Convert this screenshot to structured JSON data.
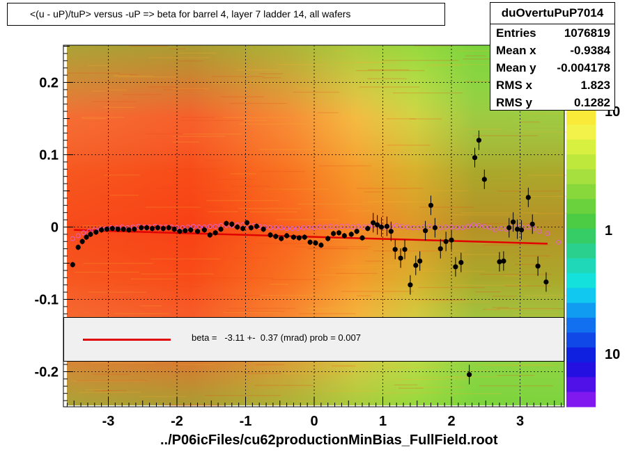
{
  "chart_data": {
    "type": "scatter",
    "title": "<(u - uP)/tuP> versus  -uP => beta for barrel 4, layer 7 ladder 14, all wafers",
    "xlabel": "../P06icFiles/cu62productionMinBias_FullField.root",
    "ylabel": "",
    "xlim": [
      -3.65,
      3.65
    ],
    "ylim": [
      -0.25,
      0.25
    ],
    "x_ticks": [
      "-3",
      "-2",
      "-1",
      "0",
      "1",
      "2",
      "3"
    ],
    "y_ticks": [
      "0.2",
      "0.1",
      "0",
      "-0.1",
      "-0.2"
    ],
    "grid": true,
    "colorbar": {
      "ticks": [
        "10",
        "1",
        "10"
      ]
    },
    "stats": {
      "name": "duOvertuPuP7014",
      "rows": [
        {
          "label": "Entries",
          "value": "1076819"
        },
        {
          "label": "Mean x",
          "value": "-0.9384"
        },
        {
          "label": "Mean y",
          "value": "-0.004178"
        },
        {
          "label": "RMS x",
          "value": "1.823"
        },
        {
          "label": "RMS y",
          "value": "0.1282"
        }
      ]
    },
    "legend": {
      "text": "beta =   -3.11 +-  0.37 (mrad) prob = 0.007",
      "line_color": "#e00000"
    },
    "fit_line": {
      "x": [
        -3.5,
        3.4
      ],
      "y": [
        -0.004,
        -0.023
      ],
      "color": "#e00000"
    },
    "series": [
      {
        "marker": "filled-circle",
        "color": "#000000",
        "points": [
          [
            -3.52,
            -0.052
          ],
          [
            -3.44,
            -0.028
          ],
          [
            -3.38,
            -0.02
          ],
          [
            -3.32,
            -0.014
          ],
          [
            -3.26,
            -0.01
          ],
          [
            -3.18,
            -0.007
          ],
          [
            -3.1,
            -0.004
          ],
          [
            -3.02,
            -0.003
          ],
          [
            -2.94,
            -0.002
          ],
          [
            -2.86,
            -0.003
          ],
          [
            -2.78,
            -0.003
          ],
          [
            -2.7,
            -0.004
          ],
          [
            -2.62,
            -0.003
          ],
          [
            -2.52,
            -0.001
          ],
          [
            -2.44,
            -0.001
          ],
          [
            -2.36,
            -0.002
          ],
          [
            -2.28,
            -0.001
          ],
          [
            -2.2,
            -0.002
          ],
          [
            -2.12,
            -0.001
          ],
          [
            -2.04,
            -0.003
          ],
          [
            -1.96,
            -0.006
          ],
          [
            -1.88,
            -0.005
          ],
          [
            -1.8,
            -0.004
          ],
          [
            -1.7,
            -0.006
          ],
          [
            -1.6,
            -0.004
          ],
          [
            -1.52,
            -0.011
          ],
          [
            -1.44,
            -0.008
          ],
          [
            -1.36,
            -0.003
          ],
          [
            -1.28,
            0.005
          ],
          [
            -1.2,
            0.004
          ],
          [
            -1.12,
            0.0
          ],
          [
            -1.04,
            -0.002
          ],
          [
            -0.98,
            0.006
          ],
          [
            -0.92,
            -0.001
          ],
          [
            -0.84,
            0.001
          ],
          [
            -0.74,
            -0.003
          ],
          [
            -0.64,
            -0.011
          ],
          [
            -0.56,
            -0.013
          ],
          [
            -0.48,
            -0.016
          ],
          [
            -0.4,
            -0.012
          ],
          [
            -0.3,
            -0.014
          ],
          [
            -0.22,
            -0.015
          ],
          [
            -0.14,
            -0.014
          ],
          [
            -0.06,
            -0.021
          ],
          [
            0.02,
            -0.022
          ],
          [
            0.1,
            -0.025
          ],
          [
            0.2,
            -0.016
          ],
          [
            0.28,
            -0.009
          ],
          [
            0.36,
            -0.008
          ],
          [
            0.44,
            -0.012
          ],
          [
            0.54,
            -0.01
          ],
          [
            0.62,
            -0.006
          ],
          [
            0.7,
            -0.015
          ],
          [
            0.78,
            -0.002
          ],
          [
            0.86,
            0.006
          ],
          [
            0.92,
            0.003
          ],
          [
            0.98,
            0.0
          ],
          [
            1.06,
            0.001
          ],
          [
            1.12,
            -0.006
          ],
          [
            1.18,
            -0.031
          ],
          [
            1.26,
            -0.043
          ],
          [
            1.32,
            -0.031
          ],
          [
            1.4,
            -0.08
          ],
          [
            1.48,
            -0.053
          ],
          [
            1.54,
            -0.047
          ],
          [
            1.62,
            -0.005
          ],
          [
            1.7,
            0.03
          ],
          [
            1.76,
            -0.001
          ],
          [
            1.84,
            -0.03
          ],
          [
            1.92,
            -0.02
          ],
          [
            2.0,
            -0.018
          ],
          [
            2.06,
            -0.055
          ],
          [
            2.14,
            -0.049
          ],
          [
            2.26,
            -0.204
          ],
          [
            2.34,
            0.096
          ],
          [
            2.4,
            0.12
          ],
          [
            2.48,
            0.066
          ],
          [
            2.7,
            -0.048
          ],
          [
            2.76,
            -0.047
          ],
          [
            2.84,
            -0.001
          ],
          [
            2.9,
            0.007
          ],
          [
            2.96,
            -0.003
          ],
          [
            3.02,
            -0.004
          ],
          [
            3.12,
            0.041
          ],
          [
            3.18,
            0.004
          ],
          [
            3.26,
            -0.054
          ],
          [
            3.38,
            -0.076
          ]
        ]
      },
      {
        "marker": "open-circle",
        "color": "#e060d0",
        "points": [
          [
            -3.52,
            -0.016
          ],
          [
            -3.44,
            -0.012
          ],
          [
            -3.36,
            -0.008
          ],
          [
            -3.28,
            -0.006
          ],
          [
            -3.2,
            -0.004
          ],
          [
            -3.12,
            -0.003
          ],
          [
            -3.04,
            -0.002
          ],
          [
            -2.96,
            -0.001
          ],
          [
            -2.88,
            -0.001
          ],
          [
            -2.8,
            0.0
          ],
          [
            -2.72,
            -0.001
          ],
          [
            -2.64,
            0.0
          ],
          [
            -2.56,
            0.001
          ],
          [
            -2.48,
            0.0
          ],
          [
            -2.4,
            0.0
          ],
          [
            -2.32,
            0.001
          ],
          [
            -2.24,
            0.0
          ],
          [
            -2.16,
            0.0
          ],
          [
            -2.08,
            0.0
          ],
          [
            -2.0,
            -0.001
          ],
          [
            -1.92,
            -0.001
          ],
          [
            -1.84,
            0.0
          ],
          [
            -1.76,
            0.001
          ],
          [
            -1.68,
            0.0
          ],
          [
            -1.6,
            0.0
          ],
          [
            -1.52,
            0.001
          ],
          [
            -1.44,
            0.001
          ],
          [
            -1.36,
            0.002
          ],
          [
            -1.28,
            0.002
          ],
          [
            -1.2,
            0.002
          ],
          [
            -1.12,
            0.003
          ],
          [
            -1.04,
            0.003
          ],
          [
            -0.96,
            0.002
          ],
          [
            -0.88,
            0.002
          ],
          [
            -0.8,
            0.001
          ],
          [
            -0.72,
            0.0
          ],
          [
            -0.64,
            -0.001
          ],
          [
            -0.56,
            -0.001
          ],
          [
            -0.48,
            -0.001
          ],
          [
            -0.4,
            -0.002
          ],
          [
            -0.32,
            -0.002
          ],
          [
            -0.24,
            -0.002
          ],
          [
            -0.16,
            -0.001
          ],
          [
            -0.08,
            -0.001
          ],
          [
            0.0,
            -0.001
          ],
          [
            0.08,
            0.0
          ],
          [
            0.16,
            0.0
          ],
          [
            0.24,
            0.001
          ],
          [
            0.32,
            0.0
          ],
          [
            0.4,
            0.001
          ],
          [
            0.48,
            0.001
          ],
          [
            0.56,
            0.0
          ],
          [
            0.64,
            0.001
          ],
          [
            0.72,
            0.0
          ],
          [
            0.8,
            0.001
          ],
          [
            0.88,
            0.002
          ],
          [
            0.96,
            0.001
          ],
          [
            1.04,
            0.0
          ],
          [
            1.12,
            0.001
          ],
          [
            1.2,
            0.002
          ],
          [
            1.28,
            0.001
          ],
          [
            1.36,
            0.0
          ],
          [
            1.44,
            -0.001
          ],
          [
            1.52,
            -0.001
          ],
          [
            1.6,
            0.0
          ],
          [
            1.68,
            0.001
          ],
          [
            1.76,
            0.0
          ],
          [
            1.84,
            -0.001
          ],
          [
            1.92,
            0.0
          ],
          [
            2.0,
            0.0
          ],
          [
            2.08,
            -0.001
          ],
          [
            2.16,
            -0.001
          ],
          [
            2.24,
            0.001
          ],
          [
            2.32,
            0.003
          ],
          [
            2.4,
            0.002
          ],
          [
            2.48,
            0.001
          ],
          [
            2.56,
            -0.001
          ],
          [
            2.64,
            -0.004
          ],
          [
            2.72,
            -0.002
          ],
          [
            2.8,
            -0.003
          ],
          [
            2.88,
            -0.001
          ],
          [
            2.96,
            0.0
          ],
          [
            3.04,
            -0.001
          ],
          [
            3.12,
            0.0
          ],
          [
            3.2,
            -0.002
          ],
          [
            3.28,
            -0.006
          ],
          [
            3.4,
            -0.009
          ],
          [
            3.56,
            -0.021
          ]
        ]
      }
    ]
  }
}
